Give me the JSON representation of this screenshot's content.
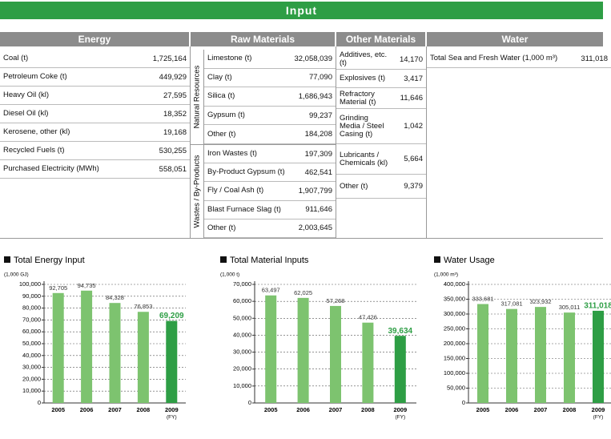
{
  "header": {
    "title": "Input"
  },
  "table": {
    "headers": [
      "Energy",
      "Raw Materials",
      "Other Materials",
      "Water"
    ],
    "energy": [
      [
        "Coal (t)",
        "1,725,164"
      ],
      [
        "Petroleum Coke (t)",
        "449,929"
      ],
      [
        "Heavy Oil (kl)",
        "27,595"
      ],
      [
        "Diesel Oil (kl)",
        "18,352"
      ],
      [
        "Kerosene, other (kl)",
        "19,168"
      ],
      [
        "Recycled Fuels (t)",
        "530,255"
      ],
      [
        "Purchased Electricity (MWh)",
        "558,051"
      ]
    ],
    "natural_resources": {
      "label": "Natural Resources",
      "rows": [
        [
          "Limestone (t)",
          "32,058,039"
        ],
        [
          "Clay (t)",
          "77,090"
        ],
        [
          "Silica (t)",
          "1,686,943"
        ],
        [
          "Gypsum (t)",
          "99,237"
        ],
        [
          "Other (t)",
          "184,208"
        ]
      ]
    },
    "wastes": {
      "label": "Wastes / By-Products",
      "rows": [
        [
          "Iron Wastes (t)",
          "197,309"
        ],
        [
          "By-Product Gypsum (t)",
          "462,541"
        ],
        [
          "Fly / Coal Ash (t)",
          "1,907,799"
        ],
        [
          "Blast Furnace Slag (t)",
          "911,646"
        ],
        [
          "Other (t)",
          "2,003,645"
        ]
      ]
    },
    "other_materials": [
      [
        "Additives, etc. (t)",
        "14,170"
      ],
      [
        "Explosives (t)",
        "3,417"
      ],
      [
        "Refractory Material (t)",
        "11,646"
      ],
      [
        "Grinding Media / Steel Casing (t)",
        "1,042"
      ],
      [
        "Lubricants / Chemicals (kl)",
        "5,664"
      ],
      [
        "Other (t)",
        "9,379"
      ]
    ],
    "water": [
      [
        "Total Sea and Fresh Water (1,000 m³)",
        "311,018"
      ]
    ]
  },
  "chart_data": [
    {
      "type": "bar",
      "title": "Total Energy Input",
      "y_unit": "(1,000 GJ)",
      "x_note": "(FY)",
      "categories": [
        "2005",
        "2006",
        "2007",
        "2008",
        "2009"
      ],
      "values": [
        92705,
        94735,
        84328,
        76853,
        69209
      ],
      "value_labels": [
        "92,705",
        "94,735",
        "84,328",
        "76,853",
        "69,209"
      ],
      "color": "#7dc36f",
      "highlight_color": "#2e9e45",
      "highlight_index": 4,
      "ylim": [
        0,
        100000
      ],
      "yticks": [
        0,
        {
          "value": 10000,
          "label": "10,000"
        },
        {
          "value": 20000,
          "label": "20,000"
        },
        {
          "value": 30000,
          "label": "30,000"
        },
        {
          "value": 40000,
          "label": "40,000"
        },
        {
          "value": 50000,
          "label": "50,000"
        },
        {
          "value": 60000,
          "label": "60,000"
        },
        {
          "value": 70000,
          "label": "70,000"
        },
        {
          "value": 80000,
          "label": "80,000"
        },
        {
          "value": 90000,
          "label": "90,000"
        },
        {
          "value": 100000,
          "label": "100,000"
        }
      ],
      "grid": true
    },
    {
      "type": "bar",
      "title": "Total Material Inputs",
      "y_unit": "(1,000 t)",
      "x_note": "(FY)",
      "categories": [
        "2005",
        "2006",
        "2007",
        "2008",
        "2009"
      ],
      "values": [
        63497,
        62025,
        57268,
        47426,
        39634
      ],
      "value_labels": [
        "63,497",
        "62,025",
        "57,268",
        "47,426",
        "39,634"
      ],
      "color": "#7dc36f",
      "highlight_color": "#2e9e45",
      "highlight_index": 4,
      "ylim": [
        0,
        70000
      ],
      "yticks": [
        0,
        {
          "value": 10000,
          "label": "10,000"
        },
        {
          "value": 20000,
          "label": "20,000"
        },
        {
          "value": 30000,
          "label": "30,000"
        },
        {
          "value": 40000,
          "label": "40,000"
        },
        {
          "value": 50000,
          "label": "50,000"
        },
        {
          "value": 60000,
          "label": "60,000"
        },
        {
          "value": 70000,
          "label": "70,000"
        }
      ],
      "grid": true
    },
    {
      "type": "bar",
      "title": "Water Usage",
      "y_unit": "(1,000 m³)",
      "x_note": "(FY)",
      "categories": [
        "2005",
        "2006",
        "2007",
        "2008",
        "2009"
      ],
      "values": [
        333681,
        317081,
        323932,
        305011,
        311018
      ],
      "value_labels": [
        "333,681",
        "317,081",
        "323,932",
        "305,011",
        "311,018"
      ],
      "color": "#7dc36f",
      "highlight_color": "#2e9e45",
      "highlight_index": 4,
      "ylim": [
        0,
        400000
      ],
      "yticks": [
        0,
        {
          "value": 50000,
          "label": "50,000"
        },
        {
          "value": 100000,
          "label": "100,000"
        },
        {
          "value": 150000,
          "label": "150,000"
        },
        {
          "value": 200000,
          "label": "200,000"
        },
        {
          "value": 250000,
          "label": "250,000"
        },
        {
          "value": 300000,
          "label": "300,000"
        },
        {
          "value": 350000,
          "label": "350,000"
        },
        {
          "value": 400000,
          "label": "400,000"
        }
      ],
      "grid": true
    }
  ]
}
